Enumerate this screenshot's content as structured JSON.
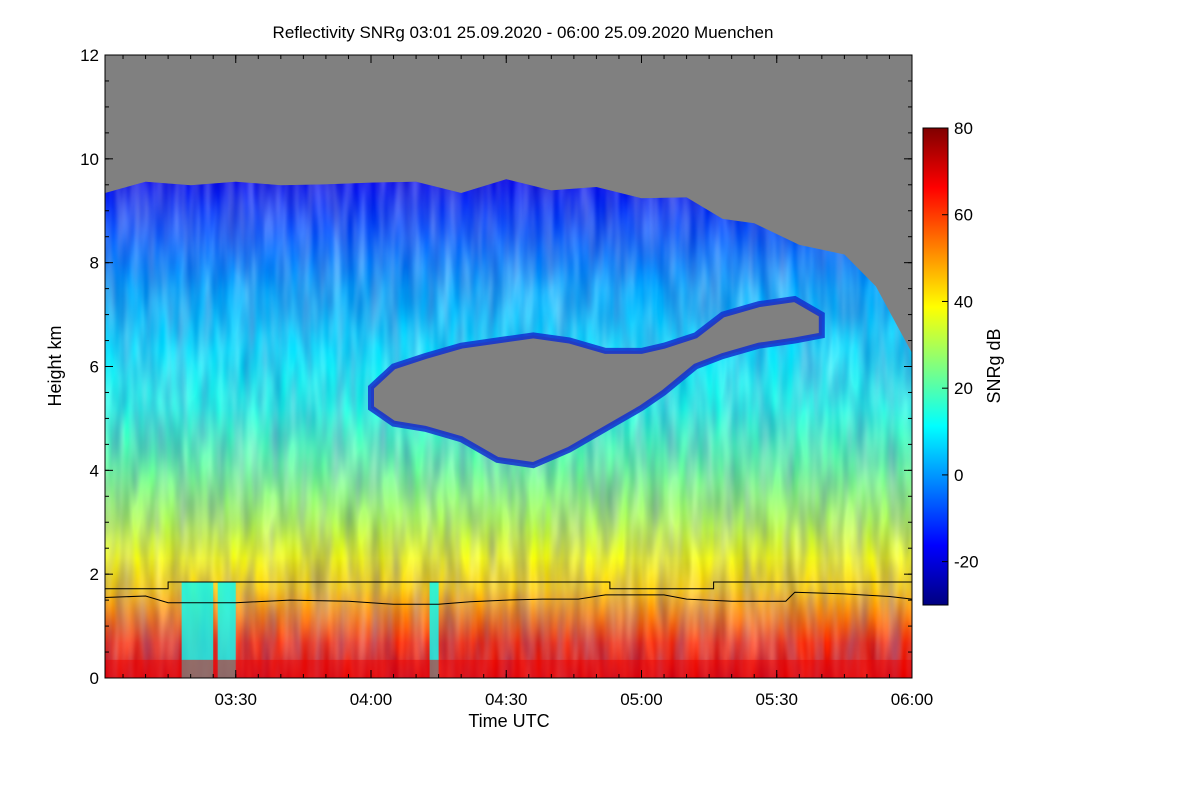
{
  "chart_data": {
    "type": "heatmap",
    "title": "Reflectivity SNRg   03:01 25.09.2020 - 06:00 25.09.2020 Muenchen",
    "xlabel": "Time UTC",
    "ylabel": "Height km",
    "colorbar_label": "SNRg dB",
    "x_range_minutes_utc": [
      181,
      360
    ],
    "x_ticks": [
      {
        "label": "03:30",
        "minutes": 210
      },
      {
        "label": "04:00",
        "minutes": 240
      },
      {
        "label": "04:30",
        "minutes": 270
      },
      {
        "label": "05:00",
        "minutes": 300
      },
      {
        "label": "05:30",
        "minutes": 330
      },
      {
        "label": "06:00",
        "minutes": 360
      }
    ],
    "ylim": [
      0,
      12
    ],
    "y_ticks": [
      {
        "label": "0",
        "value": 0
      },
      {
        "label": "2",
        "value": 2
      },
      {
        "label": "4",
        "value": 4
      },
      {
        "label": "6",
        "value": 6
      },
      {
        "label": "8",
        "value": 8
      },
      {
        "label": "10",
        "value": 10
      },
      {
        "label": "12",
        "value": 12
      }
    ],
    "colorbar_range": [
      -30,
      80
    ],
    "colorbar_ticks": [
      {
        "label": "-20",
        "value": -20
      },
      {
        "label": "0",
        "value": 0
      },
      {
        "label": "20",
        "value": 20
      },
      {
        "label": "40",
        "value": 40
      },
      {
        "label": "60",
        "value": 60
      },
      {
        "label": "80",
        "value": 80
      }
    ],
    "colormap": [
      "#000080",
      "#0000ff",
      "#0080ff",
      "#00ffff",
      "#80ff80",
      "#ffff00",
      "#ff8000",
      "#ff0000",
      "#800000"
    ],
    "no_signal_color": "#808080",
    "cloud_top_km": [
      [
        181,
        9.4
      ],
      [
        190,
        9.5
      ],
      [
        200,
        9.55
      ],
      [
        210,
        9.5
      ],
      [
        220,
        9.55
      ],
      [
        230,
        9.45
      ],
      [
        240,
        9.6
      ],
      [
        250,
        9.5
      ],
      [
        260,
        9.4
      ],
      [
        270,
        9.55
      ],
      [
        280,
        9.45
      ],
      [
        290,
        9.4
      ],
      [
        300,
        9.3
      ],
      [
        310,
        9.2
      ],
      [
        318,
        8.9
      ],
      [
        325,
        8.7
      ],
      [
        335,
        8.4
      ],
      [
        345,
        8.1
      ],
      [
        352,
        7.6
      ],
      [
        360,
        6.2
      ]
    ],
    "gap_layer_km": [
      [
        240,
        5.2,
        5.6
      ],
      [
        245,
        4.9,
        6.0
      ],
      [
        252,
        4.8,
        6.2
      ],
      [
        260,
        4.6,
        6.4
      ],
      [
        268,
        4.2,
        6.5
      ],
      [
        276,
        4.1,
        6.6
      ],
      [
        284,
        4.4,
        6.5
      ],
      [
        292,
        4.8,
        6.3
      ],
      [
        300,
        5.2,
        6.3
      ],
      [
        305,
        5.5,
        6.4
      ],
      [
        312,
        6.0,
        6.6
      ],
      [
        318,
        6.2,
        7.0
      ],
      [
        326,
        6.4,
        7.2
      ],
      [
        334,
        6.5,
        7.3
      ],
      [
        340,
        6.6,
        7.0
      ]
    ],
    "upper_line_km": [
      [
        181,
        1.72
      ],
      [
        195,
        1.72
      ],
      [
        195,
        1.85
      ],
      [
        293,
        1.85
      ],
      [
        293,
        1.72
      ],
      [
        316,
        1.72
      ],
      [
        316,
        1.85
      ],
      [
        360,
        1.85
      ]
    ],
    "lower_line_km": [
      [
        181,
        1.55
      ],
      [
        190,
        1.58
      ],
      [
        195,
        1.45
      ],
      [
        210,
        1.45
      ],
      [
        222,
        1.5
      ],
      [
        235,
        1.48
      ],
      [
        245,
        1.42
      ],
      [
        255,
        1.42
      ],
      [
        262,
        1.47
      ],
      [
        270,
        1.5
      ],
      [
        278,
        1.52
      ],
      [
        286,
        1.52
      ],
      [
        292,
        1.6
      ],
      [
        300,
        1.6
      ],
      [
        305,
        1.6
      ],
      [
        310,
        1.52
      ],
      [
        320,
        1.48
      ],
      [
        332,
        1.48
      ],
      [
        334,
        1.65
      ],
      [
        345,
        1.62
      ],
      [
        355,
        1.57
      ],
      [
        360,
        1.52
      ]
    ]
  }
}
